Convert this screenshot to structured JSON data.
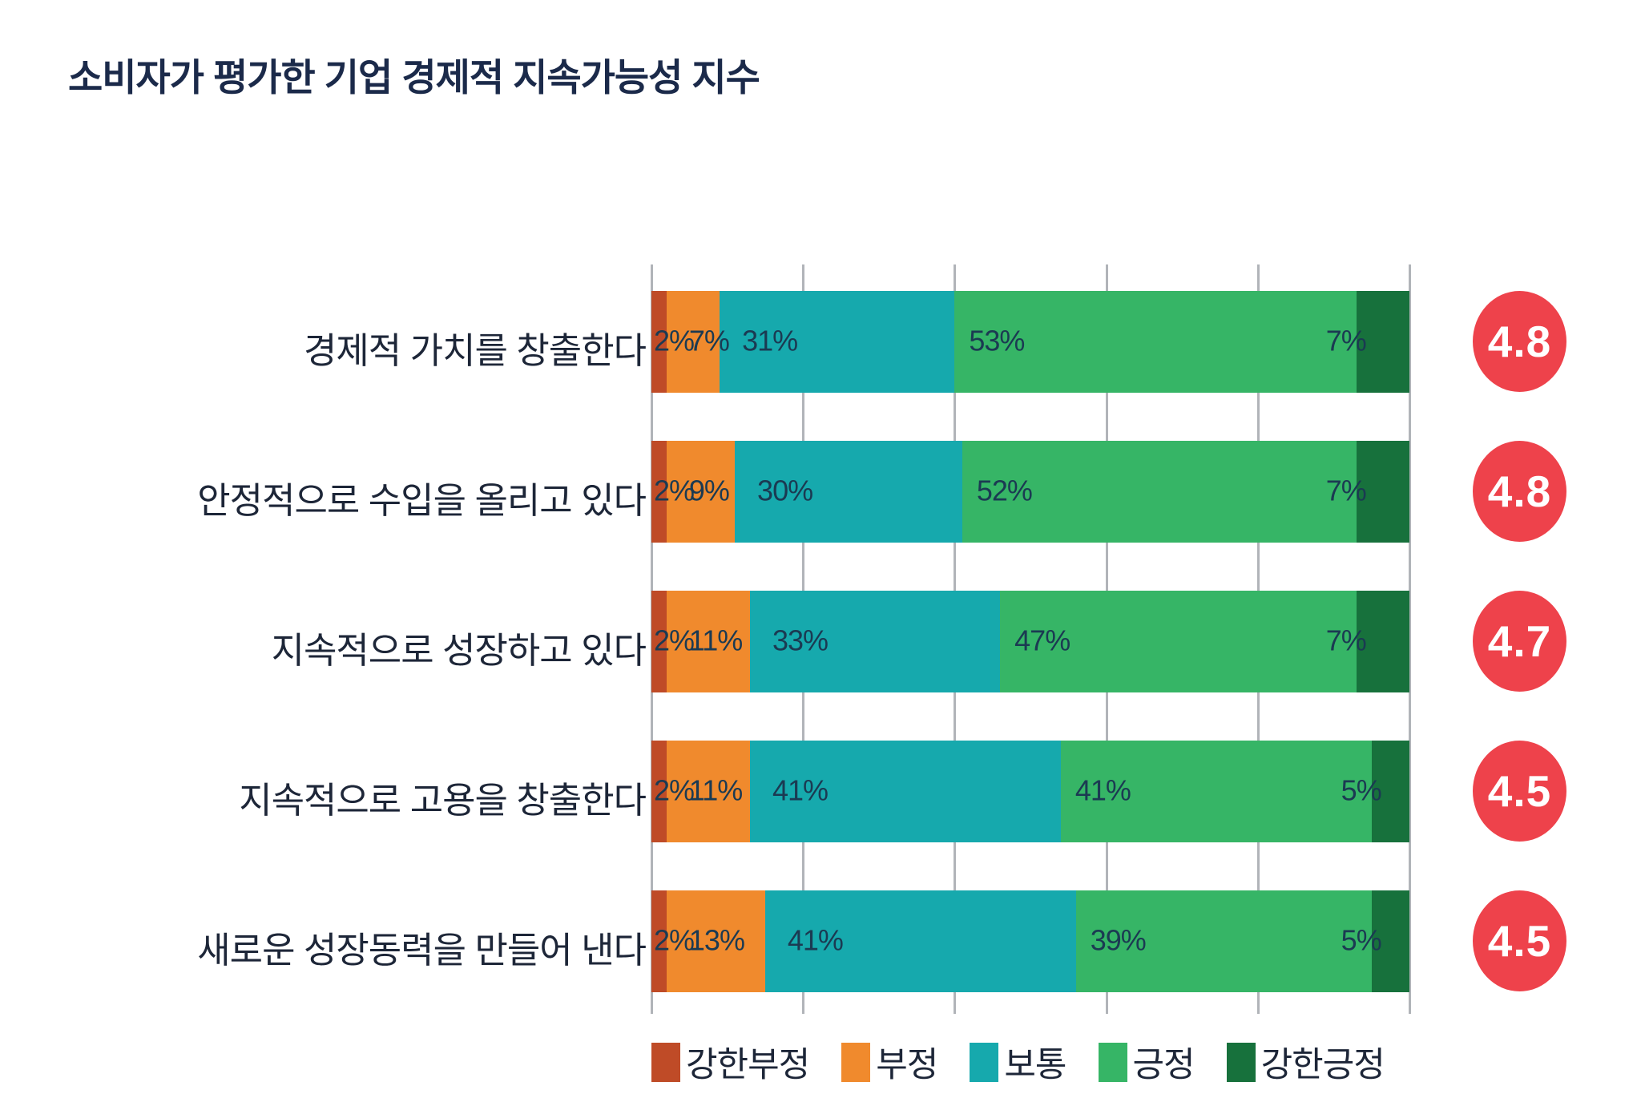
{
  "title": "소비자가 평가한 기업 경제적 지속가능성 지수",
  "chart_data": {
    "type": "bar",
    "orientation": "horizontal",
    "stacked": true,
    "unit": "%",
    "title": "소비자가 평가한 기업 경제적 지속가능성 지수",
    "categories": [
      "경제적 가치를 창출한다",
      "안정적으로 수입을 올리고 있다",
      "지속적으로 성장하고 있다",
      "지속적으로 고용을 창출한다",
      "새로운 성장동력을 만들어 낸다"
    ],
    "series": [
      {
        "name": "강한부정",
        "color": "#bf4b27",
        "values": [
          2,
          2,
          2,
          2,
          2
        ]
      },
      {
        "name": "부정",
        "color": "#f08a2d",
        "values": [
          7,
          9,
          11,
          11,
          13
        ]
      },
      {
        "name": "보통",
        "color": "#16a9ad",
        "values": [
          31,
          30,
          33,
          41,
          41
        ]
      },
      {
        "name": "긍정",
        "color": "#36b566",
        "values": [
          53,
          52,
          47,
          41,
          39
        ]
      },
      {
        "name": "강한긍정",
        "color": "#17713c",
        "values": [
          7,
          7,
          7,
          5,
          5
        ]
      }
    ],
    "scores": [
      4.8,
      4.8,
      4.7,
      4.5,
      4.5
    ],
    "score_badge_color": "#ee424b",
    "xlim": [
      0,
      100
    ],
    "gridline_interval_pct": 20,
    "grid": true,
    "gridline_color": "#b1b4b9",
    "legend_position": "bottom",
    "value_label_suffix": "%"
  }
}
